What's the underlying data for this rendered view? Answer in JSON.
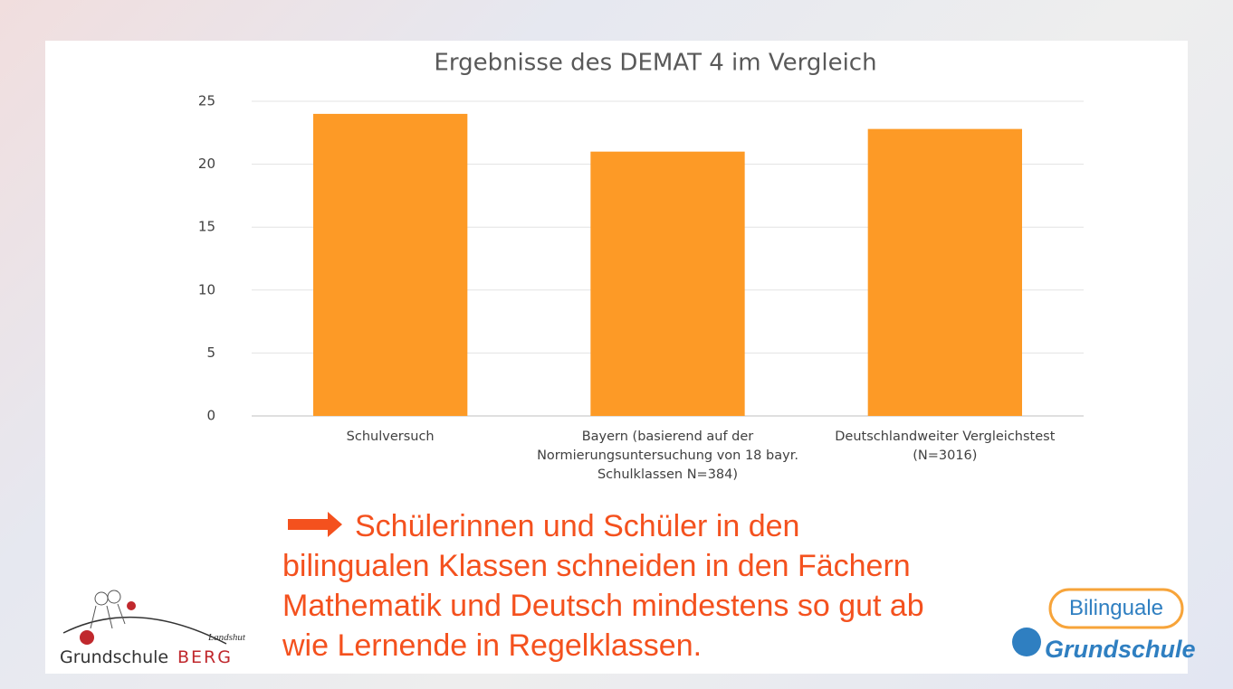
{
  "chart_data": {
    "type": "bar",
    "title": "Ergebnisse des DEMAT 4 im Vergleich",
    "categories": [
      "Schulversuch",
      "Bayern (basierend auf der Normierungsuntersuchung von 18 bayr. Schulklassen N=384)",
      "Deutschlandweiter Vergleichstest (N=3016)"
    ],
    "values": [
      24.0,
      21.0,
      22.8
    ],
    "color": "#fd9a26",
    "ylim": [
      0,
      25
    ],
    "yticks": [
      0,
      5,
      10,
      15,
      20,
      25
    ],
    "grid": true
  },
  "conclusion": {
    "lines": [
      "Schülerinnen und Schüler in den",
      "bilingualen Klassen schneiden in den Fächern",
      "Mathematik und Deutsch mindestens so gut ab",
      "wie Lernende in Regelklassen."
    ]
  },
  "logo_left": {
    "place": "Landshut",
    "name": "Grundschule",
    "highlight": "BERG"
  },
  "logo_right": {
    "top": "Bilinguale",
    "bottom": "Grundschule"
  }
}
